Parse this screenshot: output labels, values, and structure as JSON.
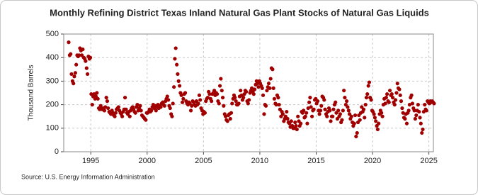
{
  "chart_data": {
    "type": "scatter",
    "title": "Monthly Refining District Texas Inland Natural Gas Plant Stocks of Natural Gas Liquids",
    "y_label": "Thousand Barrels",
    "source": "Source: U.S. Energy Information Administration",
    "color": "#a00000",
    "grid": true,
    "xlim": [
      1992.6,
      2025.4
    ],
    "xticks": [
      1995,
      2000,
      2005,
      2010,
      2015,
      2020,
      2025
    ],
    "ylim": [
      0,
      500
    ],
    "yticks": [
      0,
      100,
      200,
      300,
      400,
      500
    ],
    "x": [
      1993.04,
      1993.13,
      1993.21,
      1993.29,
      1993.38,
      1993.46,
      1993.54,
      1993.63,
      1993.71,
      1993.79,
      1993.88,
      1993.96,
      1994.04,
      1994.13,
      1994.21,
      1994.29,
      1994.38,
      1994.46,
      1994.54,
      1994.63,
      1994.71,
      1994.79,
      1994.88,
      1994.96,
      1995.04,
      1995.13,
      1995.21,
      1995.29,
      1995.38,
      1995.46,
      1995.54,
      1995.63,
      1995.71,
      1995.79,
      1995.88,
      1995.96,
      1996.04,
      1996.13,
      1996.21,
      1996.29,
      1996.38,
      1996.46,
      1996.54,
      1996.63,
      1996.71,
      1996.79,
      1996.88,
      1996.96,
      1997.04,
      1997.13,
      1997.21,
      1997.29,
      1997.38,
      1997.46,
      1997.54,
      1997.63,
      1997.71,
      1997.79,
      1997.88,
      1997.96,
      1998.04,
      1998.13,
      1998.21,
      1998.29,
      1998.38,
      1998.46,
      1998.54,
      1998.63,
      1998.71,
      1998.79,
      1998.88,
      1998.96,
      1999.04,
      1999.13,
      1999.21,
      1999.29,
      1999.38,
      1999.46,
      1999.54,
      1999.63,
      1999.71,
      1999.79,
      1999.88,
      1999.96,
      2000.04,
      2000.13,
      2000.21,
      2000.29,
      2000.38,
      2000.46,
      2000.54,
      2000.63,
      2000.71,
      2000.79,
      2000.88,
      2000.96,
      2001.04,
      2001.13,
      2001.21,
      2001.29,
      2001.38,
      2001.46,
      2001.54,
      2001.63,
      2001.71,
      2001.79,
      2001.88,
      2001.96,
      2002.04,
      2002.13,
      2002.21,
      2002.29,
      2002.38,
      2002.46,
      2002.54,
      2002.63,
      2002.71,
      2002.79,
      2002.88,
      2002.96,
      2003.04,
      2003.13,
      2003.21,
      2003.29,
      2003.38,
      2003.46,
      2003.54,
      2003.63,
      2003.71,
      2003.79,
      2003.88,
      2003.96,
      2004.04,
      2004.13,
      2004.21,
      2004.29,
      2004.38,
      2004.46,
      2004.54,
      2004.63,
      2004.71,
      2004.79,
      2004.88,
      2004.96,
      2005.04,
      2005.13,
      2005.21,
      2005.29,
      2005.38,
      2005.46,
      2005.54,
      2005.63,
      2005.71,
      2005.79,
      2005.88,
      2005.96,
      2006.04,
      2006.13,
      2006.21,
      2006.29,
      2006.38,
      2006.46,
      2006.54,
      2006.63,
      2006.71,
      2006.79,
      2006.88,
      2006.96,
      2007.04,
      2007.13,
      2007.21,
      2007.29,
      2007.38,
      2007.46,
      2007.54,
      2007.63,
      2007.71,
      2007.79,
      2007.88,
      2007.96,
      2008.04,
      2008.13,
      2008.21,
      2008.29,
      2008.38,
      2008.46,
      2008.54,
      2008.63,
      2008.71,
      2008.79,
      2008.88,
      2008.96,
      2009.04,
      2009.13,
      2009.21,
      2009.29,
      2009.38,
      2009.46,
      2009.54,
      2009.63,
      2009.71,
      2009.79,
      2009.88,
      2009.96,
      2010.04,
      2010.13,
      2010.21,
      2010.29,
      2010.38,
      2010.46,
      2010.54,
      2010.63,
      2010.71,
      2010.79,
      2010.88,
      2010.96,
      2011.04,
      2011.13,
      2011.21,
      2011.29,
      2011.38,
      2011.46,
      2011.54,
      2011.63,
      2011.71,
      2011.79,
      2011.88,
      2011.96,
      2012.04,
      2012.13,
      2012.21,
      2012.29,
      2012.38,
      2012.46,
      2012.54,
      2012.63,
      2012.71,
      2012.79,
      2012.88,
      2012.96,
      2013.04,
      2013.13,
      2013.21,
      2013.29,
      2013.38,
      2013.46,
      2013.54,
      2013.63,
      2013.71,
      2013.79,
      2013.88,
      2013.96,
      2014.04,
      2014.13,
      2014.21,
      2014.29,
      2014.38,
      2014.46,
      2014.54,
      2014.63,
      2014.71,
      2014.79,
      2014.88,
      2014.96,
      2015.04,
      2015.13,
      2015.21,
      2015.29,
      2015.38,
      2015.46,
      2015.54,
      2015.63,
      2015.71,
      2015.79,
      2015.88,
      2015.96,
      2016.04,
      2016.13,
      2016.21,
      2016.29,
      2016.38,
      2016.46,
      2016.54,
      2016.63,
      2016.71,
      2016.79,
      2016.88,
      2016.96,
      2017.04,
      2017.13,
      2017.21,
      2017.29,
      2017.38,
      2017.46,
      2017.54,
      2017.63,
      2017.71,
      2017.79,
      2017.88,
      2017.96,
      2018.04,
      2018.13,
      2018.21,
      2018.29,
      2018.38,
      2018.46,
      2018.54,
      2018.63,
      2018.71,
      2018.79,
      2018.88,
      2018.96,
      2019.04,
      2019.13,
      2019.21,
      2019.29,
      2019.38,
      2019.46,
      2019.54,
      2019.63,
      2019.71,
      2019.79,
      2019.88,
      2019.96,
      2020.04,
      2020.13,
      2020.21,
      2020.29,
      2020.38,
      2020.46,
      2020.54,
      2020.63,
      2020.71,
      2020.79,
      2020.88,
      2020.96,
      2021.04,
      2021.13,
      2021.21,
      2021.29,
      2021.38,
      2021.46,
      2021.54,
      2021.63,
      2021.71,
      2021.79,
      2021.88,
      2021.96,
      2022.04,
      2022.13,
      2022.21,
      2022.29,
      2022.38,
      2022.46,
      2022.54,
      2022.63,
      2022.71,
      2022.79,
      2022.88,
      2022.96,
      2023.04,
      2023.13,
      2023.21,
      2023.29,
      2023.38,
      2023.46,
      2023.54,
      2023.63,
      2023.71,
      2023.79,
      2023.88,
      2023.96,
      2024.04,
      2024.13,
      2024.21,
      2024.29,
      2024.38,
      2024.46,
      2024.54,
      2024.63,
      2024.71,
      2024.79,
      2024.88,
      2024.96,
      2025.04,
      2025.13,
      2025.21,
      2025.29,
      2025.38,
      2025.46
    ],
    "values": [
      465,
      410,
      415,
      330,
      300,
      290,
      320,
      335,
      370,
      410,
      405,
      410,
      440,
      430,
      410,
      435,
      400,
      395,
      385,
      355,
      330,
      405,
      395,
      400,
      245,
      200,
      235,
      245,
      225,
      235,
      250,
      225,
      185,
      180,
      195,
      185,
      180,
      185,
      175,
      190,
      230,
      215,
      185,
      170,
      165,
      160,
      175,
      165,
      155,
      150,
      165,
      180,
      185,
      190,
      175,
      165,
      160,
      150,
      170,
      180,
      230,
      180,
      165,
      160,
      170,
      150,
      175,
      185,
      190,
      180,
      170,
      165,
      190,
      200,
      175,
      185,
      195,
      175,
      155,
      150,
      145,
      140,
      135,
      165,
      165,
      170,
      180,
      170,
      175,
      190,
      200,
      185,
      195,
      175,
      190,
      200,
      185,
      195,
      190,
      205,
      210,
      200,
      195,
      215,
      225,
      235,
      220,
      195,
      185,
      160,
      150,
      205,
      275,
      395,
      440,
      370,
      330,
      300,
      280,
      250,
      240,
      210,
      225,
      245,
      250,
      215,
      205,
      200,
      210,
      205,
      175,
      195,
      215,
      210,
      200,
      195,
      215,
      200,
      205,
      240,
      220,
      185,
      175,
      160,
      170,
      165,
      215,
      225,
      230,
      255,
      245,
      225,
      215,
      245,
      250,
      260,
      240,
      250,
      245,
      215,
      205,
      280,
      310,
      260,
      230,
      195,
      160,
      150,
      135,
      130,
      155,
      160,
      140,
      165,
      205,
      225,
      240,
      230,
      215,
      200,
      200,
      205,
      235,
      260,
      240,
      220,
      230,
      245,
      260,
      255,
      215,
      205,
      220,
      250,
      260,
      270,
      255,
      245,
      265,
      285,
      300,
      290,
      275,
      300,
      290,
      280,
      270,
      240,
      160,
      200,
      195,
      260,
      275,
      290,
      270,
      310,
      355,
      350,
      270,
      225,
      205,
      200,
      240,
      230,
      200,
      180,
      150,
      170,
      160,
      130,
      140,
      150,
      170,
      140,
      125,
      120,
      105,
      130,
      110,
      100,
      100,
      125,
      110,
      95,
      150,
      130,
      110,
      120,
      170,
      165,
      175,
      145,
      150,
      165,
      120,
      185,
      210,
      230,
      190,
      150,
      175,
      180,
      220,
      225,
      205,
      215,
      175,
      160,
      175,
      195,
      235,
      230,
      220,
      180,
      160,
      150,
      170,
      185,
      175,
      130,
      150,
      150,
      180,
      200,
      210,
      165,
      140,
      175,
      150,
      160,
      125,
      135,
      175,
      260,
      230,
      200,
      215,
      190,
      175,
      160,
      140,
      150,
      125,
      110,
      120,
      155,
      65,
      80,
      125,
      155,
      135,
      165,
      190,
      170,
      180,
      145,
      200,
      230,
      245,
      280,
      295,
      230,
      220,
      175,
      170,
      160,
      145,
      130,
      110,
      95,
      120,
      160,
      175,
      165,
      150,
      200,
      225,
      205,
      230,
      245,
      215,
      210,
      260,
      240,
      245,
      230,
      210,
      200,
      220,
      250,
      290,
      270,
      265,
      240,
      215,
      185,
      165,
      145,
      140,
      160,
      120,
      165,
      175,
      200,
      230,
      240,
      205,
      185,
      175,
      140,
      155,
      175,
      200,
      170,
      145,
      120,
      80,
      95,
      170,
      200,
      180,
      175,
      215,
      210,
      205,
      215,
      210,
      215,
      210,
      205
    ]
  }
}
